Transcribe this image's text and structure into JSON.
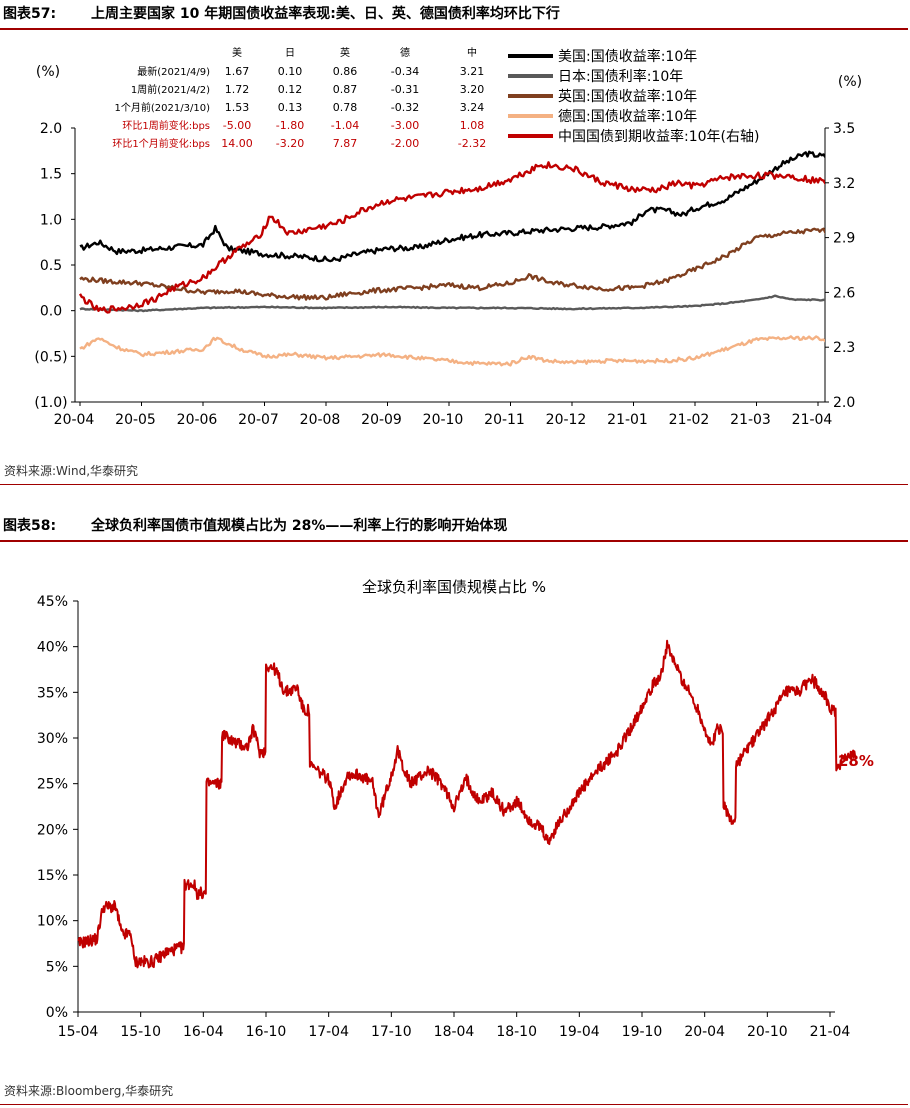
{
  "figure57": {
    "label": "图表57:",
    "title": "上周主要国家 10 年期国债收益率表现:美、日、英、德国债利率均环比下行",
    "source": "资料来源:Wind,华泰研究",
    "table": {
      "headers": [
        "美",
        "日",
        "英",
        "德",
        "中"
      ],
      "rows": [
        {
          "label": "最新(2021/4/9)",
          "values": [
            "1.67",
            "0.10",
            "0.86",
            "-0.34",
            "3.21"
          ],
          "red": false
        },
        {
          "label": "1周前(2021/4/2)",
          "values": [
            "1.72",
            "0.12",
            "0.87",
            "-0.31",
            "3.20"
          ],
          "red": false
        },
        {
          "label": "1个月前(2021/3/10)",
          "values": [
            "1.53",
            "0.13",
            "0.78",
            "-0.32",
            "3.24"
          ],
          "red": false
        },
        {
          "label": "环比1周前变化:bps",
          "values": [
            "-5.00",
            "-1.80",
            "-1.04",
            "-3.00",
            "1.08"
          ],
          "red": true
        },
        {
          "label": "环比1个月前变化:bps",
          "values": [
            "14.00",
            "-3.20",
            "7.87",
            "-2.00",
            "-2.32"
          ],
          "red": true
        }
      ]
    },
    "chart_data": {
      "type": "line",
      "left_unit": "(%)",
      "right_unit": "(%)",
      "x_ticks": [
        "20-04",
        "20-05",
        "20-06",
        "20-07",
        "20-08",
        "20-09",
        "20-10",
        "20-11",
        "20-12",
        "21-01",
        "21-02",
        "21-03",
        "21-04"
      ],
      "y_left_ticks": [
        "2.0",
        "1.5",
        "1.0",
        "0.5",
        "0.0",
        "(0.5)",
        "(1.0)"
      ],
      "y_left_range": [
        -1.0,
        2.0
      ],
      "y_right_ticks": [
        "3.5",
        "3.2",
        "2.9",
        "2.6",
        "2.3",
        "2.0"
      ],
      "y_right_range": [
        2.0,
        3.5
      ],
      "grid": false,
      "legend_position": "top-right",
      "series": [
        {
          "name": "美国:国债收益率:10年",
          "color": "#000000",
          "axis": "left",
          "anchors": [
            [
              0,
              0.68
            ],
            [
              0.3,
              0.75
            ],
            [
              0.6,
              0.65
            ],
            [
              1,
              0.66
            ],
            [
              1.6,
              0.7
            ],
            [
              2,
              0.72
            ],
            [
              2.2,
              0.9
            ],
            [
              2.4,
              0.68
            ],
            [
              3,
              0.62
            ],
            [
              3.4,
              0.6
            ],
            [
              3.8,
              0.58
            ],
            [
              4.1,
              0.55
            ],
            [
              4.5,
              0.62
            ],
            [
              5,
              0.68
            ],
            [
              5.5,
              0.69
            ],
            [
              6,
              0.78
            ],
            [
              6.5,
              0.83
            ],
            [
              7,
              0.85
            ],
            [
              7.5,
              0.88
            ],
            [
              8,
              0.9
            ],
            [
              8.5,
              0.92
            ],
            [
              9,
              0.97
            ],
            [
              9.2,
              1.1
            ],
            [
              9.5,
              1.1
            ],
            [
              9.8,
              1.05
            ],
            [
              10,
              1.12
            ],
            [
              10.5,
              1.22
            ],
            [
              11,
              1.42
            ],
            [
              11.4,
              1.6
            ],
            [
              11.8,
              1.72
            ],
            [
              12,
              1.7
            ],
            [
              12.3,
              1.67
            ]
          ]
        },
        {
          "name": "日本:国债利率:10年",
          "color": "#595959",
          "axis": "left",
          "anchors": [
            [
              0,
              0.02
            ],
            [
              1,
              0.0
            ],
            [
              2,
              0.03
            ],
            [
              3,
              0.04
            ],
            [
              4,
              0.03
            ],
            [
              5,
              0.04
            ],
            [
              6,
              0.03
            ],
            [
              7,
              0.03
            ],
            [
              8,
              0.02
            ],
            [
              9,
              0.03
            ],
            [
              10,
              0.05
            ],
            [
              10.5,
              0.08
            ],
            [
              11,
              0.12
            ],
            [
              11.3,
              0.16
            ],
            [
              11.6,
              0.12
            ],
            [
              12,
              0.12
            ],
            [
              12.3,
              0.1
            ]
          ]
        },
        {
          "name": "英国:国债收益率:10年",
          "color": "#7f3f1f",
          "axis": "left",
          "anchors": [
            [
              0,
              0.35
            ],
            [
              0.5,
              0.32
            ],
            [
              1,
              0.3
            ],
            [
              1.5,
              0.25
            ],
            [
              2,
              0.2
            ],
            [
              2.5,
              0.22
            ],
            [
              3,
              0.17
            ],
            [
              3.5,
              0.15
            ],
            [
              4,
              0.14
            ],
            [
              4.3,
              0.18
            ],
            [
              4.8,
              0.22
            ],
            [
              5.5,
              0.25
            ],
            [
              6,
              0.28
            ],
            [
              6.5,
              0.25
            ],
            [
              7,
              0.3
            ],
            [
              7.3,
              0.38
            ],
            [
              7.7,
              0.3
            ],
            [
              8,
              0.28
            ],
            [
              8.5,
              0.24
            ],
            [
              9,
              0.25
            ],
            [
              9.5,
              0.32
            ],
            [
              10,
              0.45
            ],
            [
              10.5,
              0.6
            ],
            [
              11,
              0.8
            ],
            [
              11.5,
              0.85
            ],
            [
              12,
              0.88
            ],
            [
              12.3,
              0.86
            ]
          ]
        },
        {
          "name": "德国:国债收益率:10年",
          "color": "#f4b183",
          "axis": "left",
          "anchors": [
            [
              0,
              -0.42
            ],
            [
              0.3,
              -0.3
            ],
            [
              0.6,
              -0.4
            ],
            [
              1,
              -0.48
            ],
            [
              1.5,
              -0.45
            ],
            [
              2,
              -0.42
            ],
            [
              2.2,
              -0.3
            ],
            [
              2.6,
              -0.42
            ],
            [
              3,
              -0.5
            ],
            [
              3.5,
              -0.48
            ],
            [
              4,
              -0.52
            ],
            [
              4.5,
              -0.5
            ],
            [
              5,
              -0.48
            ],
            [
              5.5,
              -0.52
            ],
            [
              6,
              -0.55
            ],
            [
              6.5,
              -0.58
            ],
            [
              7,
              -0.58
            ],
            [
              7.3,
              -0.5
            ],
            [
              7.6,
              -0.55
            ],
            [
              8,
              -0.57
            ],
            [
              8.5,
              -0.55
            ],
            [
              9,
              -0.55
            ],
            [
              9.5,
              -0.55
            ],
            [
              10,
              -0.52
            ],
            [
              10.5,
              -0.42
            ],
            [
              11,
              -0.32
            ],
            [
              11.5,
              -0.3
            ],
            [
              12,
              -0.3
            ],
            [
              12.3,
              -0.34
            ]
          ]
        },
        {
          "name": "中国国债到期收益率:10年(右轴)",
          "color": "#c00000",
          "axis": "right",
          "anchors": [
            [
              0,
              2.58
            ],
            [
              0.3,
              2.5
            ],
            [
              0.8,
              2.52
            ],
            [
              1.2,
              2.56
            ],
            [
              1.5,
              2.62
            ],
            [
              2,
              2.68
            ],
            [
              2.5,
              2.82
            ],
            [
              2.9,
              2.9
            ],
            [
              3.1,
              3.02
            ],
            [
              3.4,
              2.92
            ],
            [
              3.8,
              2.95
            ],
            [
              4.2,
              2.98
            ],
            [
              4.6,
              3.05
            ],
            [
              5,
              3.1
            ],
            [
              5.5,
              3.12
            ],
            [
              6,
              3.15
            ],
            [
              6.5,
              3.17
            ],
            [
              7,
              3.22
            ],
            [
              7.5,
              3.3
            ],
            [
              8,
              3.28
            ],
            [
              8.5,
              3.2
            ],
            [
              8.8,
              3.18
            ],
            [
              9,
              3.16
            ],
            [
              9.4,
              3.16
            ],
            [
              9.7,
              3.2
            ],
            [
              10,
              3.18
            ],
            [
              10.5,
              3.23
            ],
            [
              11,
              3.24
            ],
            [
              11.5,
              3.24
            ],
            [
              12,
              3.21
            ],
            [
              12.3,
              3.21
            ]
          ]
        }
      ]
    }
  },
  "figure58": {
    "label": "图表58:",
    "title": "全球负利率国债市值规模占比为 28%——利率上行的影响开始体现",
    "source": "资料来源:Bloomberg,华泰研究",
    "chart_data": {
      "type": "line",
      "title": "全球负利率国债规模占比 %",
      "x_ticks": [
        "15-04",
        "15-10",
        "16-04",
        "16-10",
        "17-04",
        "17-10",
        "18-04",
        "18-10",
        "19-04",
        "19-10",
        "20-04",
        "20-10",
        "21-04"
      ],
      "y_ticks": [
        "45%",
        "40%",
        "35%",
        "30%",
        "25%",
        "20%",
        "15%",
        "10%",
        "5%",
        "0%"
      ],
      "y_range": [
        0,
        45
      ],
      "grid": false,
      "annotation": "28%",
      "series": [
        {
          "name": "",
          "color": "#c00000",
          "anchors": [
            [
              0,
              7.5
            ],
            [
              0.3,
              8
            ],
            [
              0.4,
              11.5
            ],
            [
              0.6,
              11.5
            ],
            [
              0.7,
              8.5
            ],
            [
              0.85,
              8.5
            ],
            [
              0.9,
              5.5
            ],
            [
              1.2,
              5.5
            ],
            [
              1.4,
              6.5
            ],
            [
              1.6,
              7
            ],
            [
              1.7,
              14
            ],
            [
              1.85,
              14
            ],
            [
              1.9,
              13
            ],
            [
              2.0,
              13
            ],
            [
              2.05,
              25
            ],
            [
              2.2,
              25
            ],
            [
              2.3,
              30.5
            ],
            [
              2.5,
              29.5
            ],
            [
              2.7,
              29
            ],
            [
              2.8,
              31
            ],
            [
              2.9,
              28.5
            ],
            [
              3.0,
              38
            ],
            [
              3.15,
              37.5
            ],
            [
              3.3,
              35
            ],
            [
              3.5,
              35.5
            ],
            [
              3.6,
              33
            ],
            [
              3.7,
              27
            ],
            [
              4.0,
              25.5
            ],
            [
              4.1,
              22.5
            ],
            [
              4.3,
              26
            ],
            [
              4.5,
              26
            ],
            [
              4.7,
              25
            ],
            [
              4.8,
              21.5
            ],
            [
              5.0,
              26
            ],
            [
              5.1,
              28.5
            ],
            [
              5.3,
              25
            ],
            [
              5.6,
              26.5
            ],
            [
              5.8,
              25
            ],
            [
              6.0,
              22.5
            ],
            [
              6.2,
              25.5
            ],
            [
              6.4,
              23
            ],
            [
              6.6,
              24
            ],
            [
              6.8,
              22
            ],
            [
              7.0,
              23
            ],
            [
              7.2,
              21
            ],
            [
              7.4,
              20
            ],
            [
              7.5,
              18.5
            ],
            [
              7.7,
              21
            ],
            [
              8.0,
              24
            ],
            [
              8.3,
              26.5
            ],
            [
              8.6,
              28.5
            ],
            [
              8.9,
              32
            ],
            [
              9.1,
              35
            ],
            [
              9.3,
              37
            ],
            [
              9.4,
              40
            ],
            [
              9.6,
              37
            ],
            [
              9.9,
              33
            ],
            [
              10.1,
              29
            ],
            [
              10.2,
              31
            ],
            [
              10.3,
              23
            ],
            [
              10.4,
              21
            ],
            [
              10.5,
              27
            ],
            [
              10.7,
              29
            ],
            [
              10.9,
              31
            ],
            [
              11.1,
              33
            ],
            [
              11.3,
              35
            ],
            [
              11.5,
              35
            ],
            [
              11.7,
              36.5
            ],
            [
              11.9,
              35
            ],
            [
              12.0,
              33
            ],
            [
              12.1,
              26
            ],
            [
              12.2,
              28
            ],
            [
              12.4,
              28
            ]
          ]
        }
      ]
    }
  }
}
